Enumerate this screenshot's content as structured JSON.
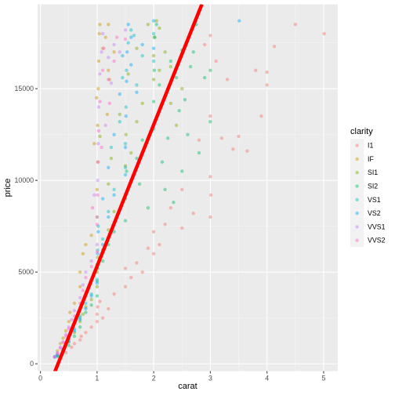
{
  "chart_data": {
    "type": "scatter",
    "xlabel": "carat",
    "ylabel": "price",
    "xlim": [
      -0.05,
      5.25
    ],
    "ylim": [
      -400,
      19600
    ],
    "x_ticks": [
      0,
      1,
      2,
      3,
      4,
      5
    ],
    "y_ticks": [
      0,
      5000,
      10000,
      15000
    ],
    "x_tick_labels": [
      "0",
      "1",
      "2",
      "3",
      "4",
      "5"
    ],
    "y_tick_labels": [
      "0",
      "5000",
      "10000",
      "15000"
    ],
    "grid": true,
    "legend": {
      "title": "clarity",
      "position": "right",
      "entries": [
        {
          "label": "I1",
          "color": "#F8766D"
        },
        {
          "label": "IF",
          "color": "#CD9600"
        },
        {
          "label": "SI1",
          "color": "#7CAE00"
        },
        {
          "label": "SI2",
          "color": "#00BE67"
        },
        {
          "label": "VS1",
          "color": "#00BFC4"
        },
        {
          "label": "VS2",
          "color": "#00A9FF"
        },
        {
          "label": "VVS1",
          "color": "#C77CFF"
        },
        {
          "label": "VVS2",
          "color": "#FF61CC"
        }
      ]
    },
    "point_alpha": 0.45,
    "series": [
      {
        "name": "I1",
        "color": "#F8766D",
        "points": [
          [
            0.45,
            600
          ],
          [
            0.55,
            900
          ],
          [
            0.6,
            1100
          ],
          [
            0.7,
            1300
          ],
          [
            0.72,
            1500
          ],
          [
            0.8,
            1700
          ],
          [
            0.9,
            2000
          ],
          [
            1.0,
            2300
          ],
          [
            1.0,
            2700
          ],
          [
            1.01,
            3100
          ],
          [
            1.05,
            3400
          ],
          [
            1.1,
            2500
          ],
          [
            1.2,
            3000
          ],
          [
            1.3,
            3800
          ],
          [
            1.5,
            4200
          ],
          [
            1.5,
            5200
          ],
          [
            1.6,
            4700
          ],
          [
            1.7,
            5500
          ],
          [
            1.8,
            5000
          ],
          [
            2.0,
            6000
          ],
          [
            2.0,
            7200
          ],
          [
            2.1,
            6500
          ],
          [
            2.2,
            7600
          ],
          [
            2.3,
            8500
          ],
          [
            2.5,
            9500
          ],
          [
            2.5,
            7400
          ],
          [
            2.7,
            8200
          ],
          [
            3.0,
            8000
          ],
          [
            3.0,
            10200
          ],
          [
            3.01,
            9200
          ],
          [
            3.2,
            12300
          ],
          [
            3.4,
            11700
          ],
          [
            3.0,
            13500
          ],
          [
            3.5,
            12400
          ],
          [
            3.65,
            11600
          ],
          [
            3.9,
            13500
          ],
          [
            4.0,
            15200
          ],
          [
            4.0,
            15900
          ],
          [
            4.13,
            17300
          ],
          [
            4.5,
            18500
          ],
          [
            5.01,
            18000
          ],
          [
            2.8,
            12200
          ],
          [
            3.3,
            15500
          ],
          [
            3.8,
            16000
          ],
          [
            3.1,
            16500
          ],
          [
            2.9,
            17400
          ],
          [
            3.0,
            17900
          ],
          [
            1.9,
            6300
          ]
        ]
      },
      {
        "name": "IF",
        "color": "#CD9600",
        "points": [
          [
            0.3,
            700
          ],
          [
            0.35,
            1100
          ],
          [
            0.4,
            1400
          ],
          [
            0.45,
            1800
          ],
          [
            0.5,
            2300
          ],
          [
            0.52,
            2800
          ],
          [
            0.6,
            3300
          ],
          [
            0.7,
            4200
          ],
          [
            0.7,
            5000
          ],
          [
            0.75,
            6000
          ],
          [
            0.8,
            6500
          ],
          [
            0.9,
            7000
          ],
          [
            1.0,
            8000
          ],
          [
            1.0,
            9500
          ],
          [
            1.01,
            11000
          ],
          [
            1.01,
            13000
          ],
          [
            1.02,
            15000
          ],
          [
            1.03,
            16500
          ],
          [
            1.04,
            18000
          ],
          [
            1.05,
            18500
          ],
          [
            1.1,
            17200
          ],
          [
            1.15,
            17800
          ],
          [
            1.2,
            16000
          ],
          [
            1.2,
            18500
          ],
          [
            0.99,
            14500
          ],
          [
            1.22,
            15500
          ],
          [
            1.3,
            17000
          ],
          [
            0.95,
            12000
          ],
          [
            1.18,
            13600
          ]
        ]
      },
      {
        "name": "SI1",
        "color": "#7CAE00",
        "points": [
          [
            0.3,
            450
          ],
          [
            0.4,
            700
          ],
          [
            0.5,
            1200
          ],
          [
            0.6,
            1700
          ],
          [
            0.7,
            2300
          ],
          [
            0.75,
            2700
          ],
          [
            0.8,
            3100
          ],
          [
            0.9,
            3500
          ],
          [
            1.0,
            4200
          ],
          [
            1.0,
            5000
          ],
          [
            1.01,
            5800
          ],
          [
            1.1,
            6200
          ],
          [
            1.2,
            7300
          ],
          [
            1.3,
            8300
          ],
          [
            1.5,
            9200
          ],
          [
            1.5,
            10800
          ],
          [
            1.51,
            12500
          ],
          [
            1.6,
            11500
          ],
          [
            1.7,
            13200
          ],
          [
            1.8,
            14200
          ],
          [
            2.0,
            15500
          ],
          [
            2.0,
            16800
          ],
          [
            2.01,
            17800
          ],
          [
            2.1,
            18300
          ],
          [
            2.2,
            17000
          ],
          [
            2.3,
            16200
          ],
          [
            2.5,
            15000
          ],
          [
            1.2,
            9800
          ],
          [
            1.25,
            11200
          ],
          [
            1.05,
            12400
          ],
          [
            1.4,
            13600
          ],
          [
            1.55,
            15800
          ],
          [
            1.7,
            17200
          ],
          [
            1.9,
            18500
          ],
          [
            2.05,
            18700
          ],
          [
            2.1,
            16000
          ],
          [
            2.3,
            14200
          ],
          [
            2.4,
            13000
          ]
        ]
      },
      {
        "name": "SI2",
        "color": "#00BE67",
        "points": [
          [
            0.3,
            400
          ],
          [
            0.4,
            650
          ],
          [
            0.5,
            1000
          ],
          [
            0.6,
            1500
          ],
          [
            0.7,
            2000
          ],
          [
            0.7,
            2500
          ],
          [
            0.8,
            2800
          ],
          [
            0.9,
            3200
          ],
          [
            1.0,
            3700
          ],
          [
            1.0,
            4500
          ],
          [
            1.01,
            5200
          ],
          [
            1.1,
            5600
          ],
          [
            1.2,
            6500
          ],
          [
            1.3,
            7200
          ],
          [
            1.5,
            7800
          ],
          [
            1.5,
            9000
          ],
          [
            1.52,
            10500
          ],
          [
            1.6,
            10000
          ],
          [
            1.7,
            11200
          ],
          [
            1.8,
            12200
          ],
          [
            2.0,
            12800
          ],
          [
            2.0,
            14300
          ],
          [
            2.01,
            16000
          ],
          [
            2.02,
            17800
          ],
          [
            2.05,
            18500
          ],
          [
            2.1,
            15200
          ],
          [
            2.2,
            14500
          ],
          [
            2.3,
            16500
          ],
          [
            2.4,
            15600
          ],
          [
            2.5,
            17100
          ],
          [
            2.55,
            14400
          ],
          [
            2.7,
            17000
          ],
          [
            2.75,
            18500
          ],
          [
            3.0,
            16000
          ],
          [
            3.0,
            13200
          ],
          [
            2.8,
            11500
          ],
          [
            2.6,
            12500
          ],
          [
            2.5,
            10500
          ],
          [
            2.35,
            8800
          ],
          [
            2.2,
            9500
          ],
          [
            1.9,
            8500
          ],
          [
            1.75,
            9800
          ],
          [
            2.45,
            13800
          ],
          [
            2.25,
            12300
          ],
          [
            2.15,
            11000
          ],
          [
            2.9,
            15600
          ],
          [
            2.65,
            16200
          ]
        ]
      },
      {
        "name": "VS1",
        "color": "#00BFC4",
        "points": [
          [
            0.3,
            450
          ],
          [
            0.4,
            800
          ],
          [
            0.5,
            1300
          ],
          [
            0.6,
            1900
          ],
          [
            0.7,
            2600
          ],
          [
            0.8,
            3300
          ],
          [
            0.9,
            3800
          ],
          [
            1.0,
            4600
          ],
          [
            1.0,
            5400
          ],
          [
            1.01,
            6200
          ],
          [
            1.02,
            7500
          ],
          [
            1.1,
            6800
          ],
          [
            1.2,
            8300
          ],
          [
            1.3,
            9500
          ],
          [
            1.5,
            10700
          ],
          [
            1.5,
            12000
          ],
          [
            1.51,
            14000
          ],
          [
            1.52,
            16000
          ],
          [
            1.55,
            17500
          ],
          [
            1.6,
            18200
          ],
          [
            1.7,
            15200
          ],
          [
            1.8,
            16800
          ],
          [
            2.0,
            18000
          ],
          [
            2.0,
            16500
          ],
          [
            1.25,
            11800
          ],
          [
            1.4,
            13200
          ],
          [
            1.65,
            17900
          ],
          [
            1.45,
            15600
          ]
        ]
      },
      {
        "name": "VS2",
        "color": "#00A9FF",
        "points": [
          [
            0.25,
            360
          ],
          [
            0.26,
            400
          ],
          [
            0.3,
            500
          ],
          [
            0.4,
            750
          ],
          [
            0.5,
            1200
          ],
          [
            0.6,
            1800
          ],
          [
            0.7,
            2400
          ],
          [
            0.8,
            3000
          ],
          [
            0.9,
            3700
          ],
          [
            1.0,
            4400
          ],
          [
            1.0,
            5300
          ],
          [
            1.01,
            6000
          ],
          [
            1.02,
            7200
          ],
          [
            1.1,
            6500
          ],
          [
            1.2,
            8000
          ],
          [
            1.3,
            9200
          ],
          [
            1.5,
            10300
          ],
          [
            1.5,
            11800
          ],
          [
            1.51,
            13500
          ],
          [
            1.52,
            15400
          ],
          [
            1.53,
            17000
          ],
          [
            1.55,
            18500
          ],
          [
            1.6,
            16300
          ],
          [
            1.7,
            14800
          ],
          [
            1.8,
            17400
          ],
          [
            2.0,
            18700
          ],
          [
            2.0,
            17200
          ],
          [
            3.51,
            18700
          ],
          [
            1.3,
            12500
          ],
          [
            1.2,
            10700
          ],
          [
            1.1,
            9000
          ],
          [
            1.45,
            16800
          ],
          [
            1.6,
            17800
          ],
          [
            1.4,
            14700
          ]
        ]
      },
      {
        "name": "VVS1",
        "color": "#C77CFF",
        "points": [
          [
            0.25,
            380
          ],
          [
            0.3,
            600
          ],
          [
            0.35,
            900
          ],
          [
            0.4,
            1200
          ],
          [
            0.45,
            1600
          ],
          [
            0.5,
            2000
          ],
          [
            0.55,
            2400
          ],
          [
            0.6,
            2900
          ],
          [
            0.7,
            3600
          ],
          [
            0.75,
            4300
          ],
          [
            0.8,
            5000
          ],
          [
            0.9,
            5600
          ],
          [
            1.0,
            6500
          ],
          [
            1.0,
            8000
          ],
          [
            1.01,
            10000
          ],
          [
            1.02,
            12000
          ],
          [
            1.03,
            14000
          ],
          [
            1.05,
            15800
          ],
          [
            1.08,
            17000
          ],
          [
            1.1,
            18000
          ],
          [
            1.2,
            16700
          ],
          [
            1.25,
            15300
          ],
          [
            1.3,
            17400
          ],
          [
            1.5,
            18200
          ],
          [
            0.95,
            9200
          ],
          [
            1.15,
            13000
          ],
          [
            1.4,
            17000
          ]
        ]
      },
      {
        "name": "VVS2",
        "color": "#FF61CC",
        "points": [
          [
            0.25,
            370
          ],
          [
            0.3,
            550
          ],
          [
            0.35,
            850
          ],
          [
            0.4,
            1150
          ],
          [
            0.45,
            1500
          ],
          [
            0.5,
            1900
          ],
          [
            0.6,
            2600
          ],
          [
            0.7,
            3300
          ],
          [
            0.75,
            4000
          ],
          [
            0.8,
            4700
          ],
          [
            0.9,
            5300
          ],
          [
            1.0,
            6100
          ],
          [
            1.0,
            7600
          ],
          [
            1.01,
            9200
          ],
          [
            1.02,
            11000
          ],
          [
            1.03,
            12700
          ],
          [
            1.05,
            14300
          ],
          [
            1.1,
            16000
          ],
          [
            1.12,
            17200
          ],
          [
            1.2,
            15500
          ],
          [
            1.3,
            16500
          ],
          [
            1.35,
            17800
          ],
          [
            1.5,
            17700
          ],
          [
            0.92,
            8500
          ],
          [
            1.08,
            11800
          ],
          [
            1.22,
            14200
          ]
        ]
      }
    ],
    "regression_line": {
      "color": "#FF0000",
      "x": [
        0.22,
        2.85
      ],
      "y": [
        -700,
        19600
      ]
    }
  }
}
